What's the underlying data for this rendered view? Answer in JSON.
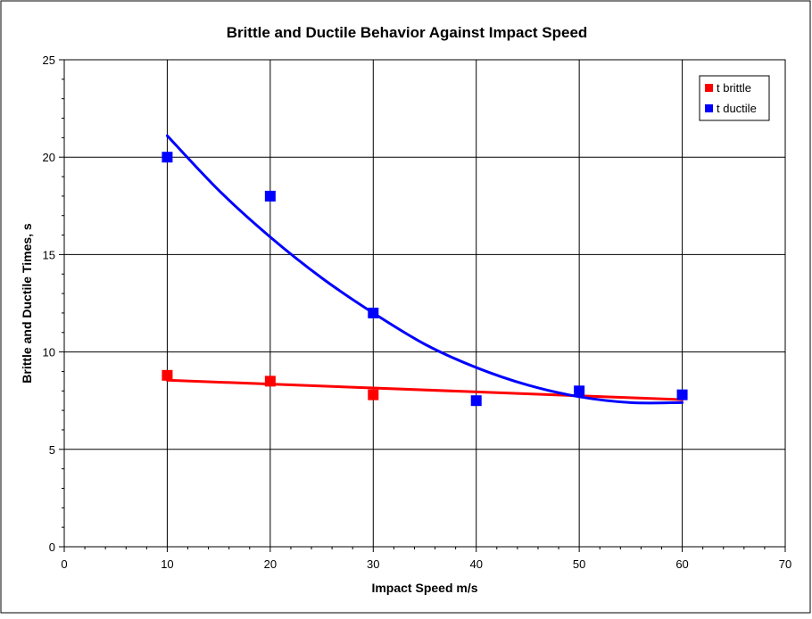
{
  "chart_data": {
    "type": "scatter",
    "title": "Brittle and Ductile Behavior Against Impact Speed",
    "xlabel": "Impact Speed m/s",
    "ylabel": "Brittle and Ductile Times, s",
    "xlim": [
      0,
      70
    ],
    "ylim": [
      0,
      25
    ],
    "x_ticks": [
      0,
      10,
      20,
      30,
      40,
      50,
      60,
      70
    ],
    "y_ticks": [
      0,
      5,
      10,
      15,
      20,
      25
    ],
    "grid": true,
    "legend_position": "top-right",
    "series": [
      {
        "name": "t brittle",
        "color": "#ff0000",
        "marker": "square",
        "x": [
          10,
          20,
          30,
          40,
          50,
          60
        ],
        "y": [
          8.8,
          8.5,
          7.8,
          null,
          null,
          null
        ],
        "trendline": {
          "type": "linear",
          "x": [
            10,
            60
          ],
          "y": [
            8.55,
            7.55
          ]
        }
      },
      {
        "name": "t ductile",
        "color": "#0000ff",
        "marker": "square",
        "x": [
          10,
          20,
          30,
          40,
          50,
          60
        ],
        "y": [
          20,
          18,
          12,
          7.5,
          8,
          7.8
        ],
        "trendline": {
          "type": "polynomial",
          "x": [
            10,
            15,
            20,
            25,
            30,
            35,
            40,
            45,
            50,
            55,
            60
          ],
          "y": [
            21.1,
            18.3,
            15.9,
            13.8,
            12.0,
            10.4,
            9.2,
            8.3,
            7.7,
            7.4,
            7.4
          ]
        }
      }
    ]
  }
}
